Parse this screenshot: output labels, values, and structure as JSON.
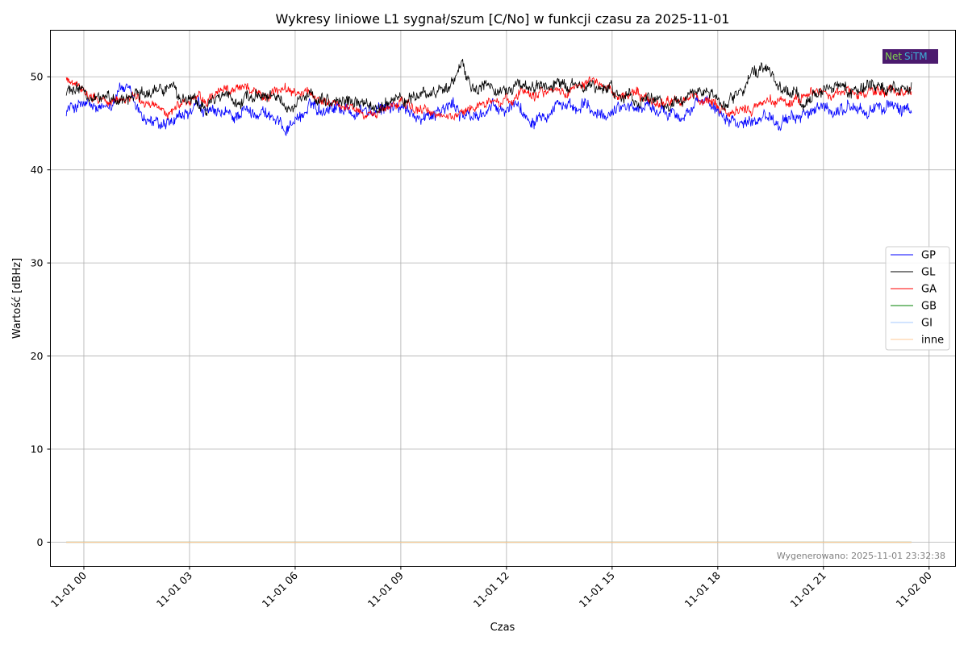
{
  "chart_data": {
    "type": "line",
    "title": "Wykresy liniowe L1 sygnał/szum [C/No] w funkcji czasu za 2025-11-01",
    "xlabel": "Czas",
    "ylabel": "Wartość [dBHz]",
    "ylim": [
      -2.6,
      55
    ],
    "xlim": [
      "2025-10-31 23:03",
      "2025-11-02 00:45"
    ],
    "x_start": "2025-10-31 23:30",
    "x_end": "2025-11-01 23:30",
    "y_ticks": [
      0,
      10,
      20,
      30,
      40,
      50
    ],
    "x_ticks": [
      {
        "t": "2025-11-01 00:00",
        "label": "11-01 00"
      },
      {
        "t": "2025-11-01 03:00",
        "label": "11-01 03"
      },
      {
        "t": "2025-11-01 06:00",
        "label": "11-01 06"
      },
      {
        "t": "2025-11-01 09:00",
        "label": "11-01 09"
      },
      {
        "t": "2025-11-01 12:00",
        "label": "11-01 12"
      },
      {
        "t": "2025-11-01 15:00",
        "label": "11-01 15"
      },
      {
        "t": "2025-11-01 18:00",
        "label": "11-01 18"
      },
      {
        "t": "2025-11-01 21:00",
        "label": "11-01 21"
      },
      {
        "t": "2025-11-02 00:00",
        "label": "11-02 00"
      }
    ],
    "grid": true,
    "legend_position": "right",
    "series": [
      {
        "name": "GP",
        "color": "#0000ff",
        "noise": 0.7,
        "values": [
          46.5,
          46.8,
          47.0,
          46.6,
          46.2,
          47.0,
          49.0,
          48.5,
          46.5,
          45.5,
          45.0,
          44.5,
          44.8,
          45.5,
          46.0,
          46.8,
          46.2,
          45.8,
          46.0,
          45.5,
          46.5,
          46.0,
          46.5,
          46.0,
          45.0,
          44.5,
          45.5,
          46.0,
          47.0,
          46.5,
          47.0,
          46.8,
          46.5,
          46.0,
          46.5,
          46.0,
          46.5,
          47.0,
          46.5,
          46.0,
          46.0,
          45.8,
          46.5,
          46.5,
          47.0,
          46.0,
          45.5,
          46.0,
          46.5,
          46.5,
          46.0,
          47.5,
          46.0,
          45.5,
          46.5,
          46.5,
          47.5,
          46.5,
          46.0,
          47.0,
          46.0,
          45.5,
          46.5,
          47.0,
          47.0,
          46.5,
          47.0,
          46.5,
          46.0,
          46.5,
          46.0,
          46.5,
          47.0,
          47.5,
          46.5,
          46.0,
          45.5,
          45.0,
          45.5,
          46.0,
          45.8,
          45.5,
          45.0,
          45.5,
          46.5,
          46.0,
          46.5,
          46.0,
          46.5,
          46.8,
          46.5,
          46.0,
          47.0,
          46.5,
          47.0,
          46.5,
          46.0
        ]
      },
      {
        "name": "GL",
        "color": "#000000",
        "noise": 0.7,
        "values": [
          48.5,
          49.0,
          48.5,
          48.0,
          47.5,
          47.5,
          48.0,
          48.0,
          48.5,
          48.5,
          48.5,
          49.0,
          49.0,
          47.5,
          47.5,
          47.0,
          47.0,
          47.5,
          48.0,
          47.5,
          47.5,
          48.0,
          48.5,
          48.0,
          47.5,
          47.0,
          47.0,
          47.5,
          47.0,
          47.5,
          47.0,
          47.5,
          47.5,
          47.0,
          47.0,
          46.5,
          47.0,
          47.5,
          48.0,
          47.5,
          48.0,
          48.5,
          48.0,
          49.0,
          49.5,
          51.0,
          49.0,
          48.5,
          49.0,
          48.5,
          48.5,
          49.0,
          49.5,
          49.0,
          48.5,
          48.5,
          49.0,
          48.5,
          49.0,
          48.5,
          49.0,
          48.5,
          48.5,
          48.0,
          48.0,
          47.5,
          48.0,
          48.0,
          47.0,
          47.5,
          47.5,
          48.0,
          48.5,
          48.0,
          47.5,
          47.0,
          48.0,
          49.0,
          50.0,
          50.5,
          50.5,
          49.0,
          48.0,
          48.5,
          47.5,
          48.5,
          49.5,
          48.5,
          49.0,
          48.5,
          48.5,
          49.0,
          49.0,
          48.5,
          48.5,
          48.0,
          48.5
        ]
      },
      {
        "name": "GA",
        "color": "#ff0000",
        "noise": 0.55,
        "values": [
          49.5,
          49.5,
          48.5,
          48.0,
          47.5,
          47.0,
          47.5,
          48.0,
          47.5,
          47.0,
          47.0,
          46.5,
          46.5,
          47.0,
          47.5,
          48.0,
          47.5,
          48.0,
          48.5,
          48.5,
          49.5,
          48.5,
          48.0,
          48.0,
          48.5,
          48.5,
          48.5,
          48.0,
          48.0,
          47.5,
          47.5,
          47.0,
          46.5,
          46.5,
          46.0,
          46.0,
          46.5,
          47.0,
          47.0,
          47.0,
          46.5,
          46.0,
          46.0,
          45.8,
          45.5,
          46.5,
          46.5,
          47.0,
          47.5,
          47.0,
          47.5,
          48.0,
          48.5,
          48.5,
          48.5,
          48.5,
          48.5,
          48.5,
          49.0,
          49.5,
          49.5,
          49.0,
          48.5,
          48.0,
          48.0,
          48.0,
          47.5,
          47.0,
          47.5,
          47.5,
          47.5,
          48.0,
          47.5,
          47.0,
          46.5,
          46.0,
          46.0,
          46.5,
          46.5,
          47.0,
          47.5,
          47.5,
          47.0,
          47.5,
          48.0,
          48.5,
          48.5,
          48.0,
          48.5,
          48.5,
          48.0,
          48.0,
          48.5,
          48.5,
          48.5,
          48.5,
          48.5
        ]
      },
      {
        "name": "GB",
        "color": "#008000",
        "noise": 0,
        "values": [
          0,
          0
        ]
      },
      {
        "name": "GI",
        "color": "#a6c8ff",
        "noise": 0,
        "values": [
          0,
          0
        ]
      },
      {
        "name": "inne",
        "color": "#ffc896",
        "noise": 0,
        "values": [
          0,
          0
        ]
      }
    ],
    "annotation": "Wygenerowano: 2025-11-01 23:32:38"
  }
}
